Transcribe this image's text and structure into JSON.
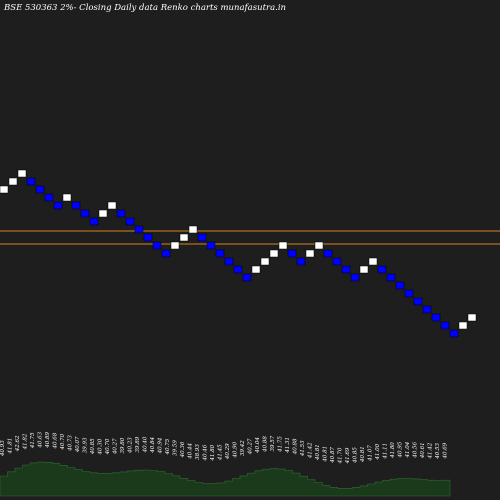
{
  "title": "BSE 530363 2%-  Closing Daily data  Renko  charts munafasutra.in",
  "colors": {
    "background": "#1e1e1e",
    "up_brick_fill": "#ffffff",
    "down_brick_fill": "#0000ff",
    "brick_stroke": "#000000",
    "level_line": "#d2841e",
    "volume_area": "#1b3a1b",
    "volume_line": "#2f6a2f",
    "label": "#ffffff"
  },
  "chart_data": {
    "type": "renko",
    "title": "BSE 530363 2%-  Closing Daily data  Renko  charts munafasutra.in",
    "box_size_percent": 2,
    "bricks": [
      {
        "dir": "up"
      },
      {
        "dir": "up"
      },
      {
        "dir": "up"
      },
      {
        "dir": "down"
      },
      {
        "dir": "down"
      },
      {
        "dir": "down"
      },
      {
        "dir": "down"
      },
      {
        "dir": "up"
      },
      {
        "dir": "down"
      },
      {
        "dir": "down"
      },
      {
        "dir": "down"
      },
      {
        "dir": "up"
      },
      {
        "dir": "up"
      },
      {
        "dir": "down"
      },
      {
        "dir": "down"
      },
      {
        "dir": "down"
      },
      {
        "dir": "down"
      },
      {
        "dir": "down"
      },
      {
        "dir": "down"
      },
      {
        "dir": "up"
      },
      {
        "dir": "up"
      },
      {
        "dir": "up"
      },
      {
        "dir": "down"
      },
      {
        "dir": "down"
      },
      {
        "dir": "down"
      },
      {
        "dir": "down"
      },
      {
        "dir": "down"
      },
      {
        "dir": "down"
      },
      {
        "dir": "up"
      },
      {
        "dir": "up"
      },
      {
        "dir": "up"
      },
      {
        "dir": "up"
      },
      {
        "dir": "down"
      },
      {
        "dir": "down"
      },
      {
        "dir": "up"
      },
      {
        "dir": "up"
      },
      {
        "dir": "down"
      },
      {
        "dir": "down"
      },
      {
        "dir": "down"
      },
      {
        "dir": "down"
      },
      {
        "dir": "up"
      },
      {
        "dir": "up"
      },
      {
        "dir": "down"
      },
      {
        "dir": "down"
      },
      {
        "dir": "down"
      },
      {
        "dir": "down"
      },
      {
        "dir": "down"
      },
      {
        "dir": "down"
      },
      {
        "dir": "down"
      },
      {
        "dir": "down"
      },
      {
        "dir": "down"
      },
      {
        "dir": "up"
      },
      {
        "dir": "up"
      }
    ],
    "level_lines": 2,
    "volume_labels": [
      "40.93",
      "41.81",
      "42.62",
      "41.82",
      "41.75",
      "40.63",
      "40.89",
      "40.68",
      "40.70",
      "40.73",
      "40.07",
      "39.93",
      "40.85",
      "40.30",
      "40.70",
      "40.27",
      "39.80",
      "40.23",
      "39.89",
      "40.40",
      "40.84",
      "40.94",
      "40.75",
      "39.59",
      "40.36",
      "40.44",
      "38.93",
      "40.46",
      "41.80",
      "41.45",
      "40.29",
      "40.90",
      "39.42",
      "40.27",
      "40.04",
      "40.88",
      "39.57",
      "41.75",
      "41.31",
      "40.88",
      "41.53",
      "41.42",
      "40.81",
      "40.81",
      "40.87",
      "41.70",
      "41.69",
      "40.85",
      "40.81",
      "41.07",
      "41.00",
      "41.11",
      "41.80",
      "40.95",
      "41.04",
      "40.56",
      "40.61",
      "41.42",
      "40.53",
      "40.69"
    ]
  }
}
